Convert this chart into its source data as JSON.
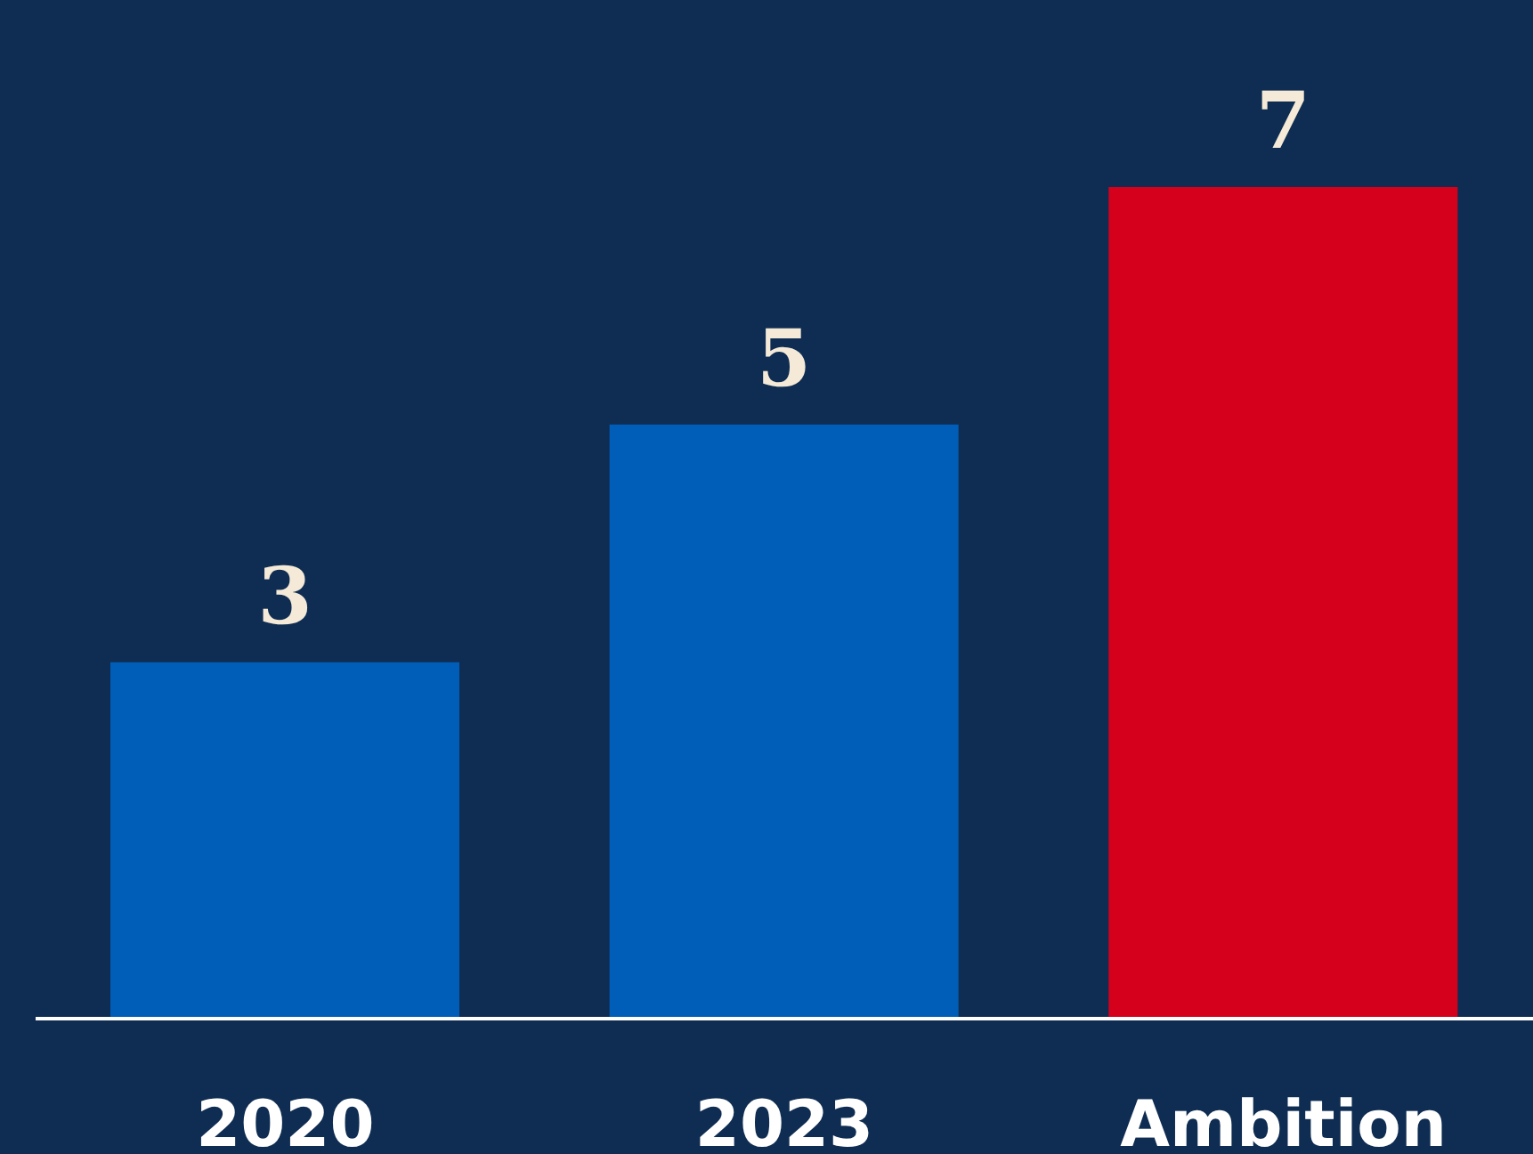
{
  "chart_data": {
    "type": "bar",
    "categories": [
      "2020",
      "2023",
      "Ambition"
    ],
    "values": [
      3,
      5,
      7
    ],
    "colors": [
      "#005eb8",
      "#005eb8",
      "#d5001c"
    ],
    "data_labels": true
  }
}
